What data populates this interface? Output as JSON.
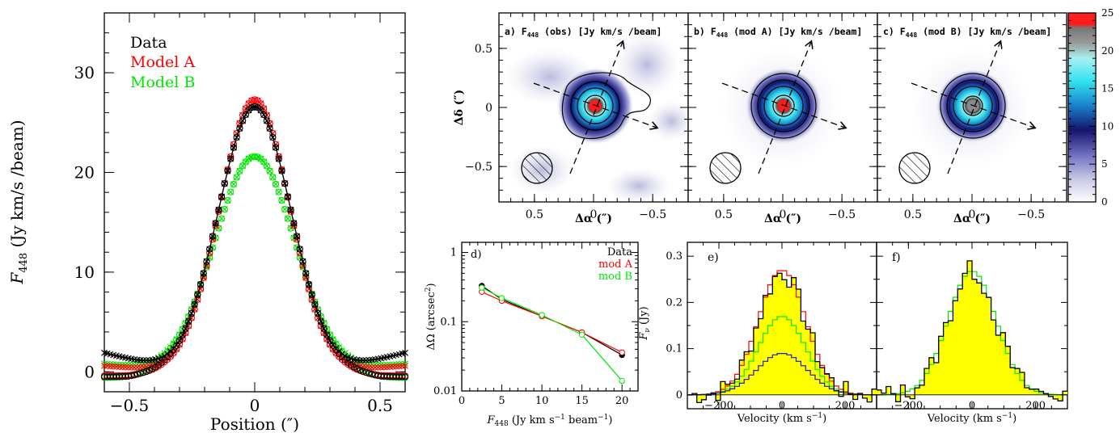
{
  "chart_data": [
    {
      "id": "profile",
      "type": "line",
      "xlabel": "Position (″)",
      "ylabel": "F448 (Jy km/s /beam)",
      "xlim": [
        -0.6,
        0.6
      ],
      "ylim": [
        -2,
        36
      ],
      "xticks": [
        -0.5,
        0,
        0.5
      ],
      "yticks": [
        0,
        10,
        20,
        30
      ],
      "legend": [
        "Data",
        "Model A",
        "Model B"
      ],
      "legend_colors": [
        "#000000",
        "#ff0000",
        "#00e600"
      ],
      "series": [
        {
          "name": "Data",
          "shape": "gauss",
          "peak": 26.6,
          "sigma": 0.145,
          "markers": "cross+circle"
        },
        {
          "name": "Model A",
          "shape": "gauss",
          "peak": 27.3,
          "sigma": 0.14,
          "markers": "circle+cross"
        },
        {
          "name": "Model B",
          "shape": "gauss",
          "peak": 21.6,
          "sigma": 0.16,
          "markers": "circle+cross"
        }
      ]
    },
    {
      "id": "maps",
      "type": "heatmap",
      "panels": [
        {
          "label": "a) F448 (obs) [Jy km/s /beam]",
          "peak": 25,
          "irregular": true
        },
        {
          "label": "b) F448 (mod A) [Jy km/s /beam]",
          "peak": 25,
          "irregular": false
        },
        {
          "label": "c) F448 (mod B) [Jy km/s /beam]",
          "peak": 20,
          "irregular": false
        }
      ],
      "xlabel": "Δα (″)",
      "ylabel": "Δδ (″)",
      "xticks": [
        0.5,
        0,
        -0.5
      ],
      "yticks": [
        0.5,
        0,
        -0.5
      ],
      "colorbar_ticks": [
        0,
        5,
        10,
        15,
        20,
        25
      ],
      "colorbar_range": [
        0,
        25
      ]
    },
    {
      "id": "area",
      "type": "line",
      "label": "d)",
      "xlabel": "F448 (Jy km s⁻¹ beam⁻¹)",
      "ylabel": "ΔΩ (arcsec²)",
      "yscale": "log",
      "xlim": [
        0,
        22
      ],
      "ylim": [
        0.01,
        1.4
      ],
      "xticks": [
        0,
        5,
        10,
        15,
        20
      ],
      "yticks": [
        0.01,
        0.1,
        1
      ],
      "ytick_labels": [
        "0.01",
        "0.1",
        "1"
      ],
      "x": [
        2.5,
        5,
        10,
        15,
        20
      ],
      "series": [
        {
          "name": "Data",
          "color": "#000000",
          "values": [
            0.33,
            0.21,
            0.12,
            0.07,
            0.033
          ]
        },
        {
          "name": "mod A",
          "color": "#ff0000",
          "values": [
            0.27,
            0.2,
            0.12,
            0.07,
            0.036
          ]
        },
        {
          "name": "mod B",
          "color": "#00e600",
          "values": [
            0.31,
            0.22,
            0.125,
            0.065,
            0.014
          ]
        }
      ]
    },
    {
      "id": "spectra",
      "type": "line",
      "panels": [
        "e)",
        "f)"
      ],
      "xlabel": "Velocity (km s⁻¹)",
      "ylabel": "Fν (Jy)",
      "xlim": [
        -300,
        300
      ],
      "ylim": [
        -0.03,
        0.33
      ],
      "xticks": [
        -200,
        0,
        200
      ],
      "yticks": [
        0,
        0.1,
        0.2,
        0.3
      ],
      "e_series": [
        {
          "name": "Data",
          "peak": 0.265,
          "sigma": 75,
          "color": "#000000"
        },
        {
          "name": "mod A",
          "peak": 0.27,
          "sigma": 75,
          "color": "#ff0000"
        },
        {
          "name": "mod B",
          "peak": 0.17,
          "sigma": 75,
          "color": "#00e600"
        },
        {
          "name": "diff",
          "peak": 0.09,
          "sigma": 80,
          "color": "#1a1aa0"
        }
      ],
      "f_series": [
        {
          "name": "Data",
          "peak": 0.27,
          "sigma": 75,
          "color": "#000000"
        },
        {
          "name": "mod B",
          "peak": 0.268,
          "sigma": 76,
          "color": "#00e600"
        }
      ]
    }
  ],
  "text": {
    "profile_xlabel": "Position (″)",
    "profile_ylabel_main": "F",
    "profile_ylabel_sub": "448",
    "profile_ylabel_rest": " (Jy km/s /beam)",
    "legend_data": "Data",
    "legend_a": "Model A",
    "legend_b": "Model B",
    "map_a_label_pre": "a) F",
    "map_a_label_post": " (obs) [Jy km/s /beam]",
    "map_b_label_pre": "b) F",
    "map_b_label_post": " (mod A) [Jy km/s /beam]",
    "map_c_label_pre": "c) F",
    "map_c_label_post": " (mod B) [Jy km/s /beam]",
    "map_sub": "448",
    "map_xlabel": "Δα (″)",
    "map_ylabel": "Δδ (″)",
    "d_label": "d)",
    "d_legend_data": "Data",
    "d_legend_a": "mod A",
    "d_legend_b": "mod B",
    "d_xlabel_pre": "F",
    "d_xlabel_sub": "448",
    "d_xlabel_post": " (Jy km s",
    "d_xlabel_sup1": "−1",
    "d_xlabel_mid": " beam",
    "d_xlabel_sup2": "−1",
    "d_xlabel_end": ")",
    "d_ylabel_pre": "ΔΩ (arcsec",
    "d_ylabel_sup": "2",
    "d_ylabel_end": ")",
    "e_label": "e)",
    "f_label": "f)",
    "spec_xlabel_pre": "Velocity (km s",
    "spec_xlabel_sup": "−1",
    "spec_xlabel_end": ")",
    "spec_ylabel_pre": "F",
    "spec_ylabel_sub": "ν",
    "spec_ylabel_end": " (Jy)"
  }
}
